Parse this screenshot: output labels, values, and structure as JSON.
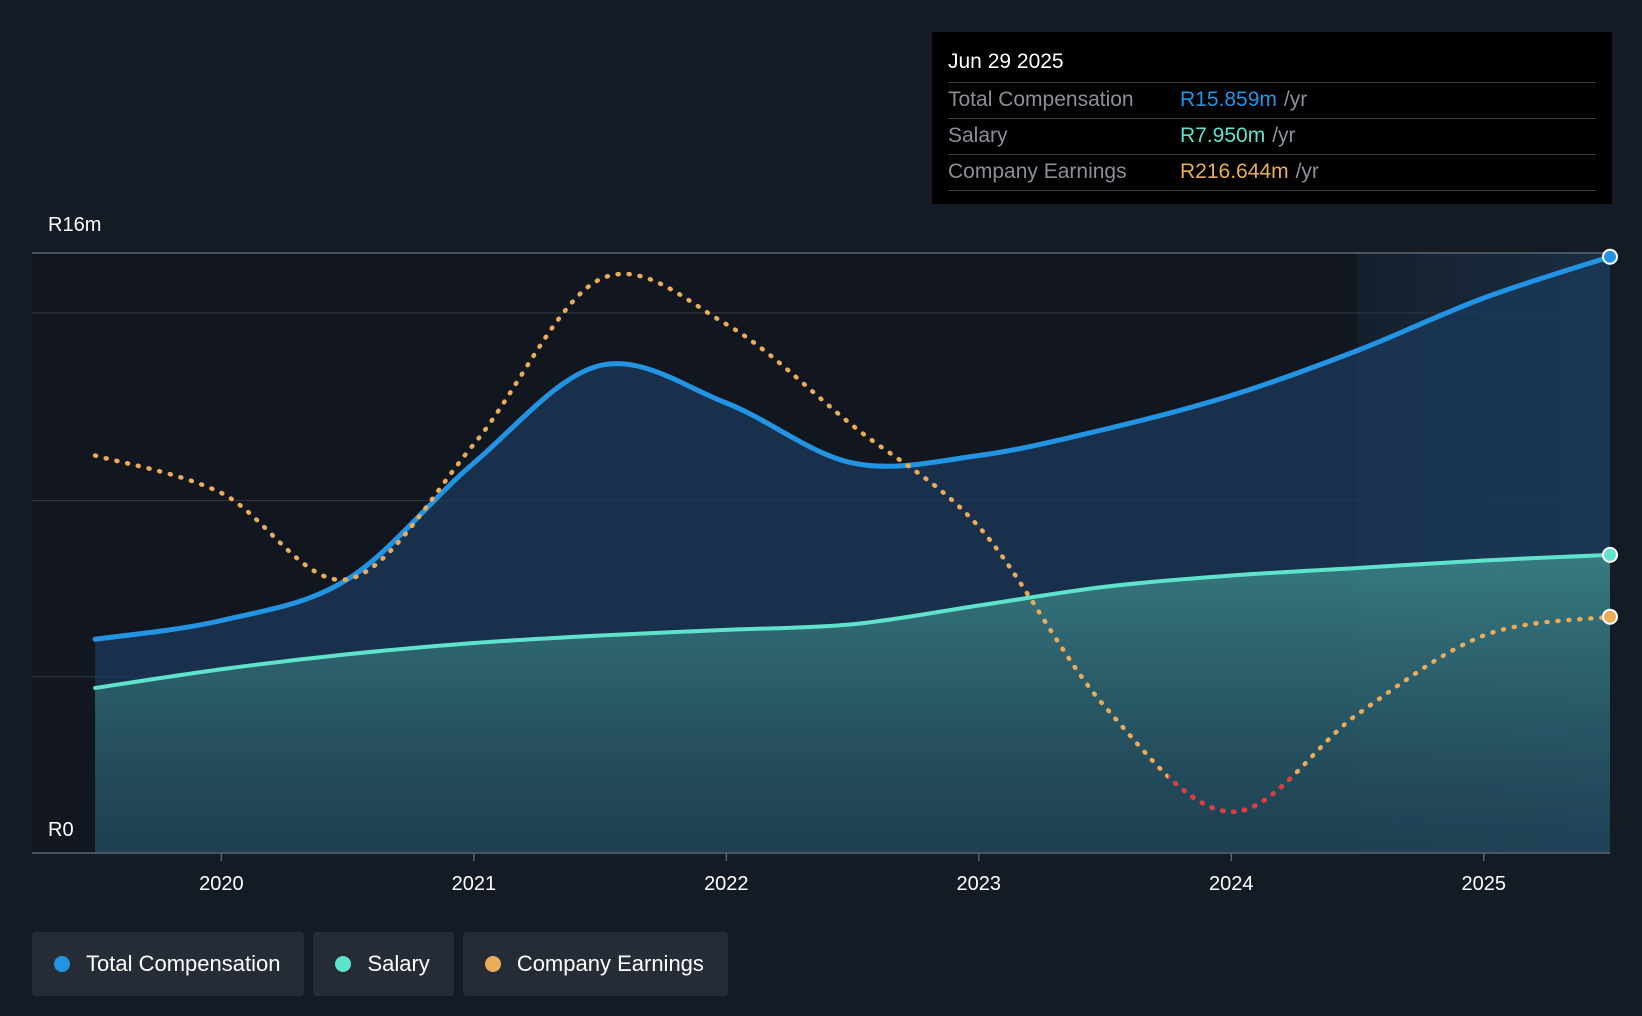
{
  "colors": {
    "background": "#151b24",
    "total": "#2394e4",
    "salary": "#5fe3cd",
    "earnings": "#e9ac5a",
    "earnings_negative": "#e5393d",
    "tooltip_bg": "#000000"
  },
  "tooltip": {
    "date": "Jun 29 2025",
    "rows": [
      {
        "label": "Total Compensation",
        "value": "R15.859m",
        "unit": "/yr"
      },
      {
        "label": "Salary",
        "value": "R7.950m",
        "unit": "/yr"
      },
      {
        "label": "Company Earnings",
        "value": "R216.644m",
        "unit": "/yr"
      }
    ]
  },
  "legend": [
    {
      "label": "Total Compensation",
      "icon": "total-compensation-dot-icon"
    },
    {
      "label": "Salary",
      "icon": "salary-dot-icon"
    },
    {
      "label": "Company Earnings",
      "icon": "company-earnings-dot-icon"
    }
  ],
  "chart_data": {
    "type": "area",
    "title": "",
    "y_axis": {
      "label_top": "R16m",
      "label_bottom": "R0",
      "ylim": [
        0,
        16
      ]
    },
    "x_axis": {
      "ticks": [
        "2020",
        "2021",
        "2022",
        "2023",
        "2024",
        "2025"
      ],
      "xlim": [
        2019.25,
        2025.5
      ]
    },
    "forecast_region_start": 2024.5,
    "series": [
      {
        "name": "Total Compensation",
        "unit": "R m",
        "points": [
          [
            2019.5,
            5.7
          ],
          [
            2020.0,
            6.2
          ],
          [
            2020.5,
            7.3
          ],
          [
            2021.0,
            10.4
          ],
          [
            2021.5,
            13.0
          ],
          [
            2022.0,
            12.0
          ],
          [
            2022.5,
            10.4
          ],
          [
            2023.0,
            10.6
          ],
          [
            2023.5,
            11.3
          ],
          [
            2024.0,
            12.2
          ],
          [
            2024.5,
            13.4
          ],
          [
            2025.0,
            14.8
          ],
          [
            2025.5,
            15.9
          ]
        ]
      },
      {
        "name": "Salary",
        "unit": "R m",
        "points": [
          [
            2019.5,
            4.4
          ],
          [
            2020.0,
            4.9
          ],
          [
            2020.5,
            5.3
          ],
          [
            2021.0,
            5.6
          ],
          [
            2021.5,
            5.8
          ],
          [
            2022.0,
            5.95
          ],
          [
            2022.5,
            6.1
          ],
          [
            2023.0,
            6.6
          ],
          [
            2023.5,
            7.1
          ],
          [
            2024.0,
            7.4
          ],
          [
            2024.5,
            7.6
          ],
          [
            2025.0,
            7.8
          ],
          [
            2025.5,
            7.95
          ]
        ]
      },
      {
        "name": "Company Earnings",
        "unit": "relative scale",
        "points": [
          [
            2019.5,
            10.6
          ],
          [
            2020.0,
            9.6
          ],
          [
            2020.5,
            7.3
          ],
          [
            2021.0,
            10.9
          ],
          [
            2021.5,
            15.3
          ],
          [
            2022.0,
            14.1
          ],
          [
            2022.5,
            11.4
          ],
          [
            2023.0,
            8.7
          ],
          [
            2023.5,
            3.9
          ],
          [
            2024.0,
            1.1
          ],
          [
            2024.5,
            3.7
          ],
          [
            2025.0,
            5.8
          ],
          [
            2025.5,
            6.3
          ]
        ]
      }
    ],
    "tooltip_point": {
      "date": "Jun 29 2025",
      "total": 15.859,
      "salary": 7.95,
      "earnings": 216.644
    }
  }
}
